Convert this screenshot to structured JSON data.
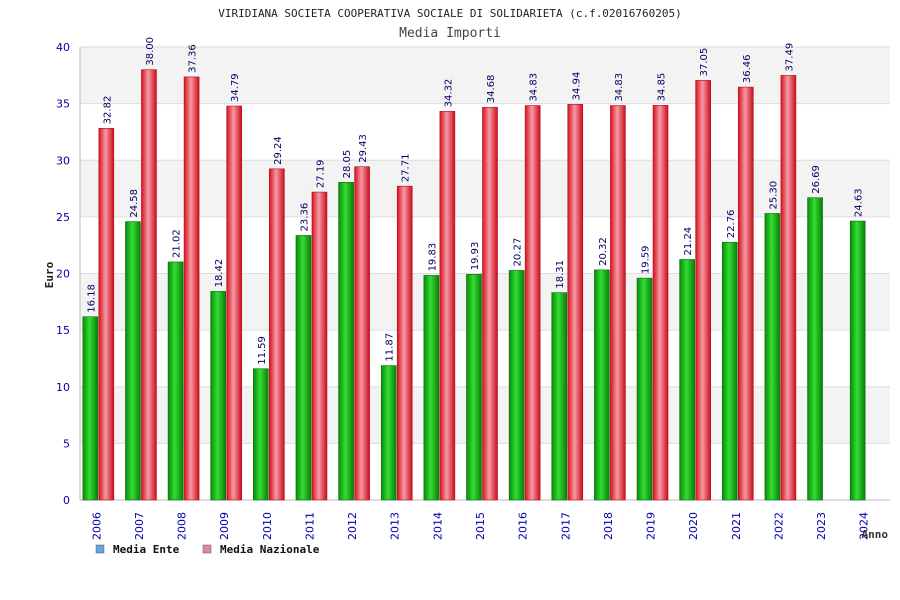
{
  "chart_data": {
    "type": "bar",
    "title": "VIRIDIANA SOCIETA COOPERATIVA SOCIALE DI SOLIDARIETA (c.f.02016760205)",
    "subtitle": "Media Importi",
    "xlabel": "Anno",
    "ylabel": "Euro",
    "ylim": [
      0,
      40
    ],
    "yticks": [
      "0",
      "5",
      "10",
      "15",
      "20",
      "25",
      "30",
      "35",
      "40"
    ],
    "grid": true,
    "legend_position": "bottom-left",
    "categories": [
      "2006",
      "2007",
      "2008",
      "2009",
      "2010",
      "2011",
      "2012",
      "2013",
      "2014",
      "2015",
      "2016",
      "2017",
      "2018",
      "2019",
      "2020",
      "2021",
      "2022",
      "2023",
      "2024"
    ],
    "series": [
      {
        "name": "Media Ente",
        "color": "#22bb22",
        "legend_color": "#66a3e0",
        "values": [
          16.18,
          24.58,
          21.02,
          18.42,
          11.59,
          23.36,
          28.05,
          11.87,
          19.83,
          19.93,
          20.27,
          18.31,
          20.32,
          19.59,
          21.24,
          22.76,
          25.3,
          26.69,
          24.63
        ],
        "labels": [
          "16.18",
          "24.58",
          "21.02",
          "18.42",
          "11.59",
          "23.36",
          "28.05",
          "11.87",
          "19.83",
          "19.93",
          "20.27",
          "18.31",
          "20.32",
          "19.59",
          "21.24",
          "22.76",
          "25.30",
          "26.69",
          "24.63"
        ]
      },
      {
        "name": "Media Nazionale",
        "color": "#ee2233",
        "legend_color": "#dd88aa",
        "values": [
          32.82,
          38.0,
          37.36,
          34.79,
          29.24,
          27.19,
          29.43,
          27.71,
          34.32,
          34.68,
          34.83,
          34.94,
          34.83,
          34.85,
          37.05,
          36.46,
          37.49,
          null,
          null
        ],
        "labels": [
          "32.82",
          "38.00",
          "37.36",
          "34.79",
          "29.24",
          "27.19",
          "29.43",
          "27.71",
          "34.32",
          "34.68",
          "34.83",
          "34.94",
          "34.83",
          "34.85",
          "37.05",
          "36.46",
          "37.49",
          "",
          ""
        ]
      }
    ]
  }
}
